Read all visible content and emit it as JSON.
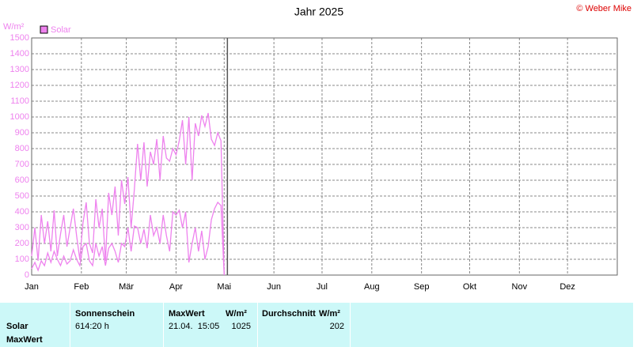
{
  "copyright": "© Weber Mike",
  "chart_data": {
    "type": "line",
    "title": "Jahr 2025",
    "ylabel": "W/m²",
    "x": [
      0,
      2,
      4,
      6,
      8,
      10,
      12,
      14,
      16,
      18,
      20,
      22,
      24,
      26,
      28,
      30,
      32,
      34,
      36,
      38,
      40,
      42,
      44,
      46,
      48,
      50,
      52,
      54,
      56,
      58,
      60,
      62,
      64,
      66,
      68,
      70,
      72,
      74,
      76,
      78,
      80,
      82,
      84,
      86,
      88,
      90,
      92,
      94,
      96,
      98,
      100,
      102,
      104,
      106,
      108,
      110,
      112,
      114,
      116,
      118,
      120
    ],
    "series": [
      {
        "name": "Solar",
        "color": "#ee82ee",
        "values": [
          120,
          300,
          90,
          380,
          200,
          340,
          150,
          410,
          120,
          260,
          380,
          180,
          300,
          420,
          250,
          100,
          330,
          460,
          200,
          140,
          480,
          300,
          420,
          90,
          520,
          380,
          560,
          250,
          600,
          450,
          620,
          300,
          540,
          830,
          600,
          840,
          560,
          780,
          700,
          860,
          600,
          880,
          740,
          720,
          800,
          760,
          850,
          980,
          700,
          1000,
          600,
          960,
          880,
          1010,
          940,
          1025,
          860,
          820,
          900,
          850,
          0
        ]
      },
      {
        "color": "#ee82ee",
        "values": [
          40,
          80,
          30,
          90,
          60,
          140,
          80,
          150,
          100,
          60,
          120,
          70,
          90,
          160,
          100,
          60,
          180,
          200,
          90,
          60,
          200,
          120,
          180,
          60,
          170,
          200,
          150,
          80,
          200,
          180,
          300,
          150,
          310,
          300,
          200,
          290,
          170,
          380,
          250,
          300,
          200,
          380,
          250,
          150,
          400,
          380,
          410,
          300,
          400,
          80,
          200,
          300,
          150,
          280,
          100,
          180,
          350,
          420,
          460,
          440,
          0
        ]
      }
    ],
    "current_day": 122,
    "xlim": [
      0,
      365
    ],
    "xticks": [
      {
        "value": 0,
        "label": "Jan"
      },
      {
        "value": 31,
        "label": "Feb"
      },
      {
        "value": 59,
        "label": "Mär"
      },
      {
        "value": 90,
        "label": "Apr"
      },
      {
        "value": 120,
        "label": "Mai"
      },
      {
        "value": 151,
        "label": "Jun"
      },
      {
        "value": 181,
        "label": "Jul"
      },
      {
        "value": 212,
        "label": "Aug"
      },
      {
        "value": 243,
        "label": "Sep"
      },
      {
        "value": 273,
        "label": "Okt"
      },
      {
        "value": 304,
        "label": "Nov"
      },
      {
        "value": 334,
        "label": "Dez"
      }
    ],
    "ylim": [
      0,
      1500
    ],
    "yticks": [
      0,
      100,
      200,
      300,
      400,
      500,
      600,
      700,
      800,
      900,
      1000,
      1100,
      1200,
      1300,
      1400,
      1500
    ],
    "grid": true
  },
  "table": {
    "row_labels": [
      "Solar",
      "MaxWert"
    ],
    "sunshine": {
      "header": "Sonnenschein",
      "value": "614:20 h"
    },
    "max": {
      "header": "MaxWert",
      "unit": "W/m²",
      "time": "21.04.  15:05",
      "value": "1025"
    },
    "average": {
      "header": "Durchschnitt",
      "unit": "W/m²",
      "value": "202"
    }
  }
}
